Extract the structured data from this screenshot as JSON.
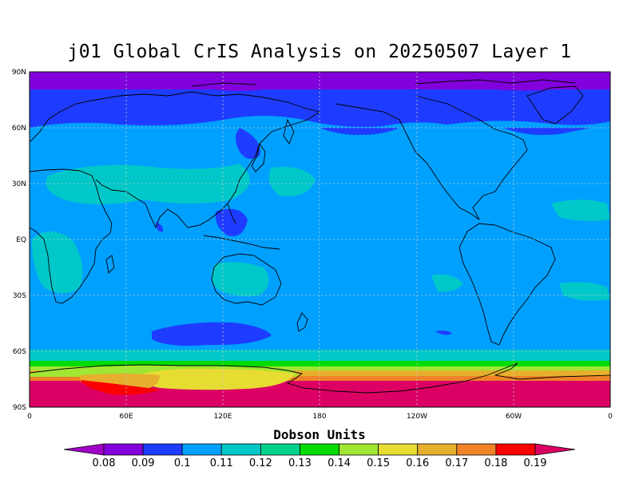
{
  "title": "j01 Global CrIS Analysis on 20250507 Layer 1",
  "colorbar": {
    "label": "Dobson Units",
    "ticks": [
      "0.08",
      "0.09",
      "0.1",
      "0.11",
      "0.12",
      "0.13",
      "0.14",
      "0.15",
      "0.16",
      "0.17",
      "0.18",
      "0.19"
    ],
    "colors": [
      "#a000c8",
      "#8200dc",
      "#1e3cff",
      "#00a0ff",
      "#00c8c8",
      "#00d28c",
      "#00dc00",
      "#a0e632",
      "#e6dc32",
      "#e6af2d",
      "#f08228",
      "#fa0000",
      "#dc0064"
    ]
  },
  "chart_data": {
    "type": "heatmap",
    "title": "j01 Global CrIS Analysis on 20250507 Layer 1",
    "variable_units": "Dobson Units",
    "x_ticks": [
      "0",
      "60E",
      "120E",
      "180",
      "120W",
      "60W",
      "0"
    ],
    "y_ticks": [
      "90N",
      "60N",
      "30N",
      "EQ",
      "30S",
      "60S",
      "90S"
    ],
    "x_range": [
      0,
      360
    ],
    "y_range": [
      -90,
      90
    ],
    "grid": "dashed",
    "levels": [
      0.08,
      0.09,
      0.1,
      0.11,
      0.12,
      0.13,
      0.14,
      0.15,
      0.16,
      0.17,
      0.18,
      0.19
    ],
    "zonal_bands": [
      {
        "lat_from": 90,
        "lat_to": 80,
        "value": 0.085
      },
      {
        "lat_from": 80,
        "lat_to": 55,
        "value": 0.095
      },
      {
        "lat_from": 55,
        "lat_to": -55,
        "value": 0.105
      },
      {
        "lat_from": -55,
        "lat_to": -62,
        "value": 0.125
      },
      {
        "lat_from": -62,
        "lat_to": -66,
        "value": 0.145
      },
      {
        "lat_from": -66,
        "lat_to": -70,
        "value": 0.165
      },
      {
        "lat_from": -70,
        "lat_to": -75,
        "value": 0.175
      },
      {
        "lat_from": -75,
        "lat_to": -90,
        "value": 0.195
      }
    ]
  }
}
